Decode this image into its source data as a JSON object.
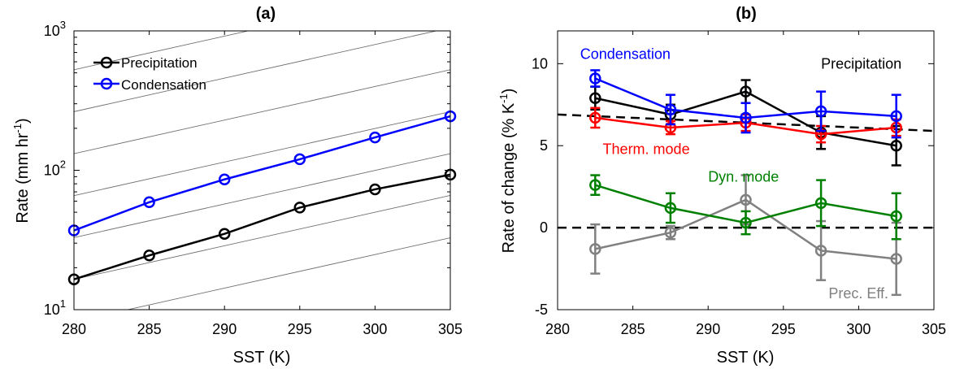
{
  "chart_data": [
    {
      "panel": "a",
      "type": "line",
      "title": "(a)",
      "xlabel": "SST (K)",
      "ylabel_main": "Rate (mm hr",
      "ylabel_sup": "-1",
      "ylabel_end": ")",
      "xlim": [
        280,
        305
      ],
      "ylim": [
        10,
        1000
      ],
      "yscale": "log",
      "xticks": [
        "280",
        "285",
        "290",
        "295",
        "300",
        "305"
      ],
      "yticks": [
        {
          "base": "10",
          "exp": "1",
          "value": 10
        },
        {
          "base": "10",
          "exp": "2",
          "value": 100
        },
        {
          "base": "10",
          "exp": "3",
          "value": 1000
        }
      ],
      "x": [
        280,
        285,
        290,
        295,
        300,
        305
      ],
      "series": [
        {
          "name": "Precipitation",
          "color": "#000000",
          "values": [
            16.5,
            24.5,
            35,
            54,
            73,
            93
          ]
        },
        {
          "name": "Condensation",
          "color": "#0000ff",
          "values": [
            37,
            59,
            86,
            120,
            172,
            244
          ]
        }
      ],
      "legend_position": "top-left",
      "reference_lines": {
        "color": "#707070",
        "description": "constant-rate growth lines",
        "start_values_at_280": [
          8.2,
          16.5,
          32.9,
          65.8,
          131.6,
          263.3,
          526.5,
          1053
        ]
      }
    },
    {
      "panel": "b",
      "type": "line",
      "title": "(b)",
      "xlabel": "SST (K)",
      "ylabel_main": "Rate of change (% K",
      "ylabel_sup": "-1",
      "ylabel_end": ")",
      "xlim": [
        280,
        305
      ],
      "ylim": [
        -5,
        12
      ],
      "xticks": [
        "280",
        "285",
        "290",
        "295",
        "300",
        "305"
      ],
      "yticks": [
        "-5",
        "0",
        "5",
        "10"
      ],
      "x": [
        282.5,
        287.5,
        292.5,
        297.5,
        302.5
      ],
      "series": [
        {
          "name": "Condensation",
          "color": "#0000ff",
          "values": [
            9.1,
            7.2,
            6.7,
            7.1,
            6.8
          ],
          "err": [
            0.5,
            0.9,
            0.9,
            1.2,
            1.3
          ],
          "label_at": [
            282.5,
            10.3
          ]
        },
        {
          "name": "Precipitation",
          "color": "#000000",
          "values": [
            7.9,
            6.9,
            8.3,
            5.8,
            5.0
          ],
          "err": [
            0.7,
            0.6,
            0.7,
            1.0,
            1.2
          ],
          "label_at": [
            297.5,
            9.7
          ]
        },
        {
          "name": "Therm. mode",
          "color": "#ff0000",
          "values": [
            6.7,
            6.1,
            6.4,
            5.7,
            6.1
          ],
          "err": [
            0.6,
            0.4,
            0.5,
            0.5,
            0.5
          ],
          "label_at": [
            283.0,
            4.5
          ]
        },
        {
          "name": "Dyn. mode",
          "color": "#008000",
          "values": [
            2.6,
            1.2,
            0.3,
            1.5,
            0.7
          ],
          "err": [
            0.6,
            0.9,
            0.7,
            1.4,
            1.4
          ],
          "label_at": [
            290.0,
            2.8
          ]
        },
        {
          "name": "Prec. Eff.",
          "color": "#808080",
          "values": [
            -1.3,
            -0.3,
            1.7,
            -1.4,
            -1.9
          ],
          "err": [
            1.5,
            0.4,
            1.5,
            1.8,
            2.2
          ],
          "label_at": [
            298.0,
            -4.3
          ]
        }
      ],
      "reference_lines": [
        {
          "style": "dashed",
          "color": "#000000",
          "from": [
            280,
            6.9
          ],
          "to": [
            305,
            5.9
          ]
        },
        {
          "style": "dashed",
          "color": "#000000",
          "from": [
            280,
            0
          ],
          "to": [
            305,
            0
          ]
        }
      ]
    }
  ]
}
